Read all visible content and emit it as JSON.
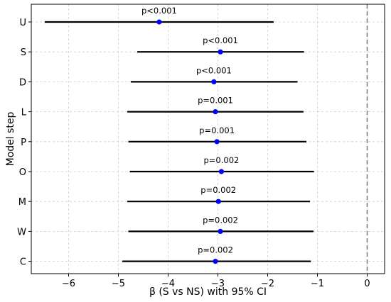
{
  "chart_data": {
    "type": "scatter",
    "title": "",
    "xlabel": "β (S vs NS) with 95% CI",
    "ylabel": "Model step",
    "xlim": [
      -6.75,
      0.35
    ],
    "xticks": [
      -6,
      -5,
      -4,
      -3,
      -2,
      -1,
      0
    ],
    "xtick_labels": [
      "−6",
      "−5",
      "−4",
      "−3",
      "−2",
      "−1",
      "0"
    ],
    "grid": true,
    "reference_line": {
      "x": 0,
      "style": "dashed"
    },
    "colors": {
      "point": "#0000ff",
      "ci": "#000000",
      "grid": "#cccccc",
      "reference": "#808080"
    },
    "categories": [
      "U",
      "S",
      "D",
      "L",
      "P",
      "O",
      "M",
      "W",
      "C"
    ],
    "estimates": [
      -4.18,
      -2.95,
      -3.08,
      -3.05,
      -3.02,
      -2.93,
      -2.99,
      -2.95,
      -3.05
    ],
    "ci_lower": [
      -6.48,
      -4.62,
      -4.75,
      -4.82,
      -4.8,
      -4.77,
      -4.82,
      -4.8,
      -4.92
    ],
    "ci_upper": [
      -1.88,
      -1.27,
      -1.4,
      -1.28,
      -1.22,
      -1.07,
      -1.15,
      -1.08,
      -1.13
    ],
    "annotations": [
      "p<0.001",
      "p<0.001",
      "p<0.001",
      "p=0.001",
      "p=0.001",
      "p=0.002",
      "p=0.002",
      "p=0.002",
      "p=0.002"
    ]
  }
}
